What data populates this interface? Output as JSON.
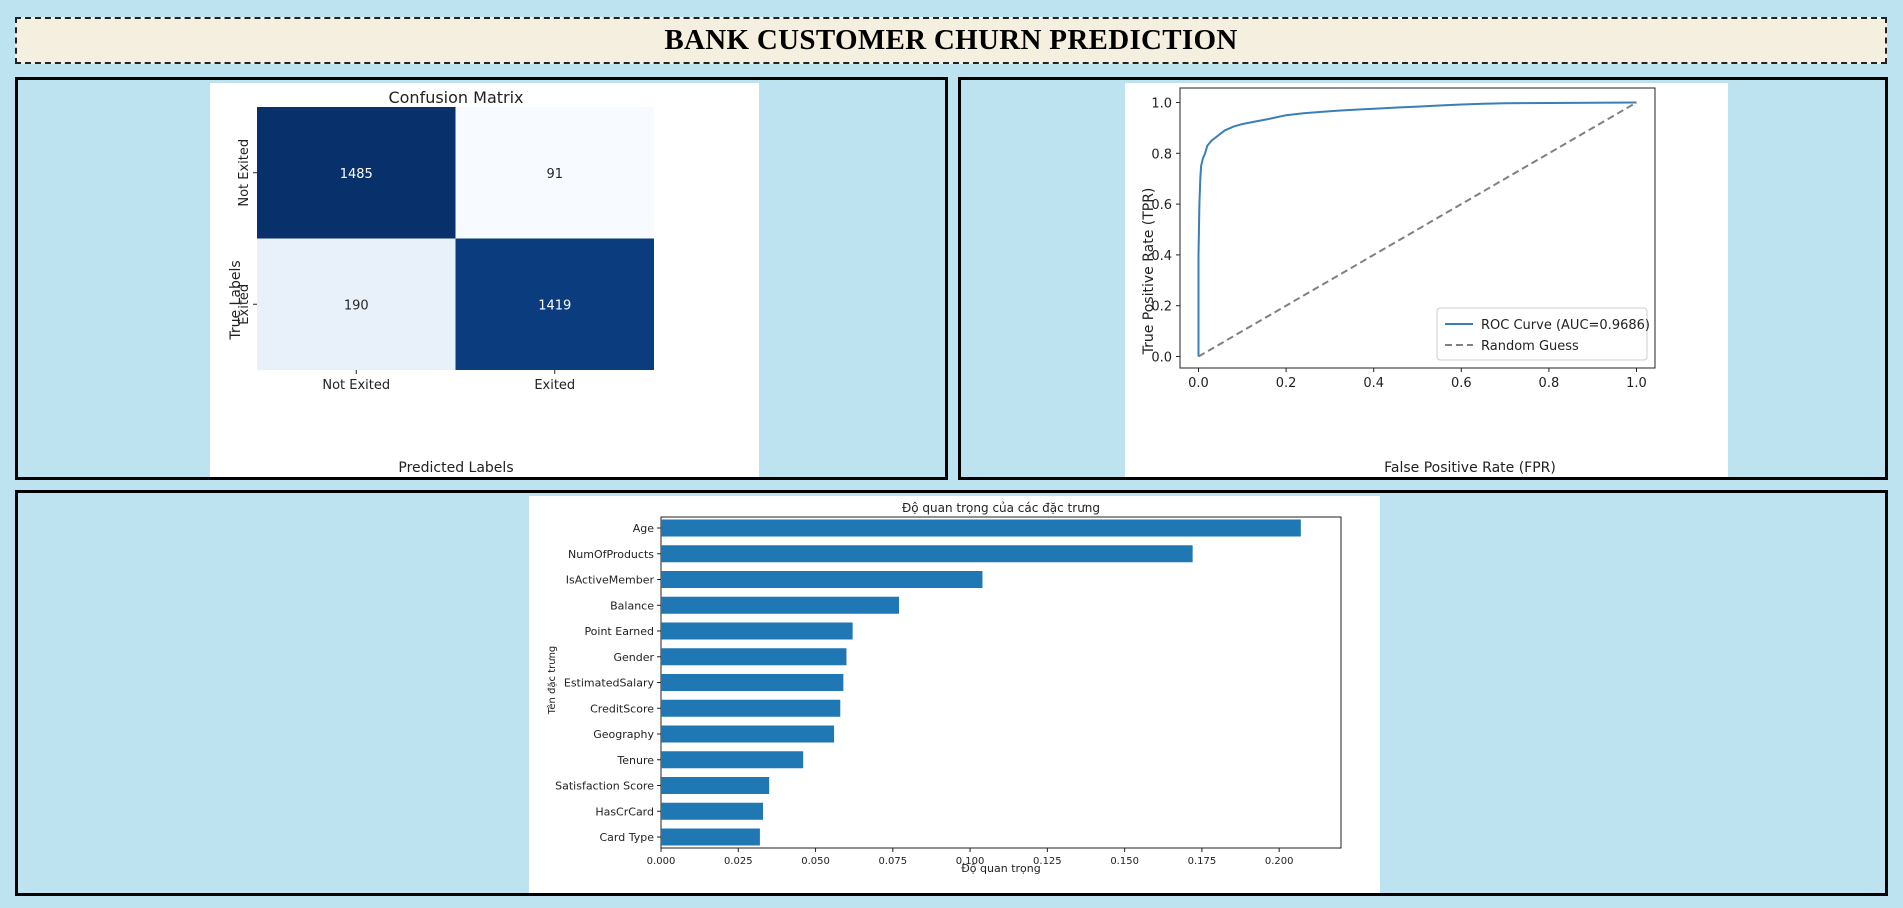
{
  "header": {
    "title": "BANK CUSTOMER CHURN PREDICTION"
  },
  "chart_data": [
    {
      "type": "heatmap",
      "title": "Confusion Matrix",
      "xlabel": "Predicted Labels",
      "ylabel": "True Labels",
      "x_categories": [
        "Not Exited",
        "Exited"
      ],
      "y_categories": [
        "Not Exited",
        "Exited"
      ],
      "values": [
        [
          1485,
          91
        ],
        [
          190,
          1419
        ]
      ],
      "colormap": "Blues",
      "cell_colors": [
        [
          "#08306b",
          "#f7fbff"
        ],
        [
          "#e8f1fa",
          "#0a3c7e"
        ]
      ],
      "text_colors": [
        [
          "#ffffff",
          "#262626"
        ],
        [
          "#262626",
          "#ffffff"
        ]
      ]
    },
    {
      "type": "line",
      "xlabel": "False Positive Rate (FPR)",
      "ylabel": "True Positive Rate (TPR)",
      "xlim": [
        0,
        1
      ],
      "ylim": [
        0,
        1
      ],
      "xticks": [
        "0.0",
        "0.2",
        "0.4",
        "0.6",
        "0.8",
        "1.0"
      ],
      "yticks": [
        "0.0",
        "0.2",
        "0.4",
        "0.6",
        "0.8",
        "1.0"
      ],
      "legend_position": "bottom-right",
      "series": [
        {
          "name": "ROC Curve (AUC=0.9686)",
          "color": "#3a7fb5",
          "style": "solid",
          "x": [
            0,
            0,
            0.002,
            0.004,
            0.006,
            0.01,
            0.015,
            0.02,
            0.03,
            0.045,
            0.06,
            0.08,
            0.1,
            0.13,
            0.16,
            0.2,
            0.24,
            0.28,
            0.32,
            0.36,
            0.4,
            0.45,
            0.5,
            0.55,
            0.6,
            0.65,
            0.7,
            0.8,
            0.9,
            1.0
          ],
          "y": [
            0,
            0.4,
            0.6,
            0.7,
            0.75,
            0.78,
            0.8,
            0.83,
            0.85,
            0.87,
            0.89,
            0.905,
            0.915,
            0.925,
            0.935,
            0.95,
            0.958,
            0.963,
            0.968,
            0.972,
            0.975,
            0.98,
            0.984,
            0.988,
            0.992,
            0.995,
            0.997,
            0.998,
            0.999,
            1.0
          ]
        },
        {
          "name": "Random Guess",
          "color": "#808080",
          "style": "dashed",
          "x": [
            0,
            1
          ],
          "y": [
            0,
            1
          ]
        }
      ]
    },
    {
      "type": "bar",
      "orientation": "horizontal",
      "title": "Độ quan trọng của các đặc trưng",
      "xlabel": "Độ quan trọng",
      "ylabel": "Tên đặc trưng",
      "xlim": [
        0,
        0.22
      ],
      "xticks": [
        "0.000",
        "0.025",
        "0.050",
        "0.075",
        "0.100",
        "0.125",
        "0.150",
        "0.175",
        "0.200"
      ],
      "color": "#1f77b4",
      "categories": [
        "Age",
        "NumOfProducts",
        "IsActiveMember",
        "Balance",
        "Point Earned",
        "Gender",
        "EstimatedSalary",
        "CreditScore",
        "Geography",
        "Tenure",
        "Satisfaction Score",
        "HasCrCard",
        "Card Type"
      ],
      "values": [
        0.207,
        0.172,
        0.104,
        0.077,
        0.062,
        0.06,
        0.059,
        0.058,
        0.056,
        0.046,
        0.035,
        0.033,
        0.032
      ]
    }
  ]
}
